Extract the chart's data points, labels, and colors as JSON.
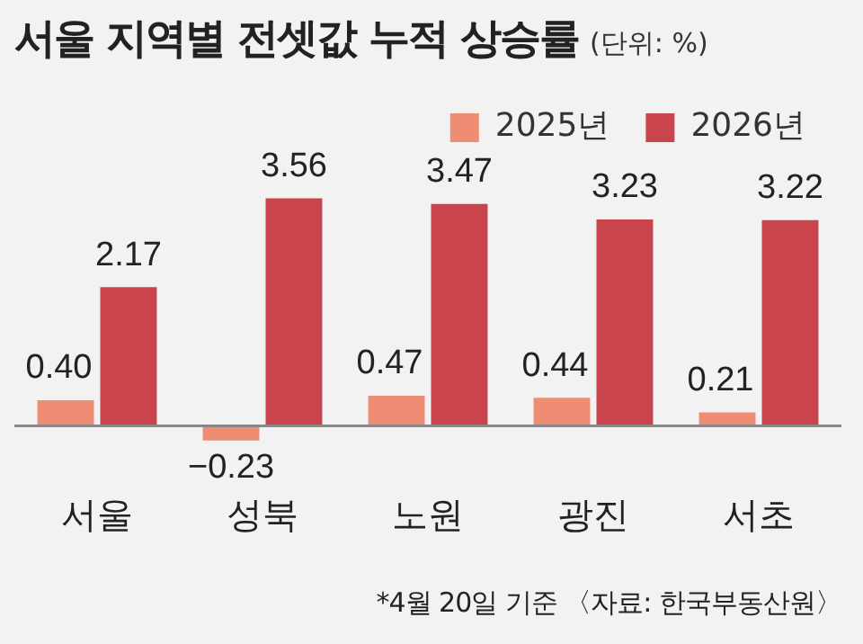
{
  "chart_data": {
    "type": "bar",
    "title": "서울 지역별 전셋값 누적 상승률",
    "subtitle": "(단위: %)",
    "categories": [
      "서울",
      "성북",
      "노원",
      "광진",
      "서초"
    ],
    "series": [
      {
        "name": "2025년",
        "color": "#ef8c74",
        "values": [
          0.4,
          -0.23,
          0.47,
          0.44,
          0.21
        ],
        "value_labels": [
          "0.40",
          "−0.23",
          "0.47",
          "0.44",
          "0.21"
        ]
      },
      {
        "name": "2026년",
        "color": "#c9454b",
        "values": [
          2.17,
          3.56,
          3.47,
          3.23,
          3.22
        ],
        "value_labels": [
          "2.17",
          "3.56",
          "3.47",
          "3.23",
          "3.22"
        ]
      }
    ],
    "legend": "top right",
    "grid": false,
    "annotations": [
      "*4월 20일 기준 〈자료: 한국부동산원〉"
    ]
  }
}
